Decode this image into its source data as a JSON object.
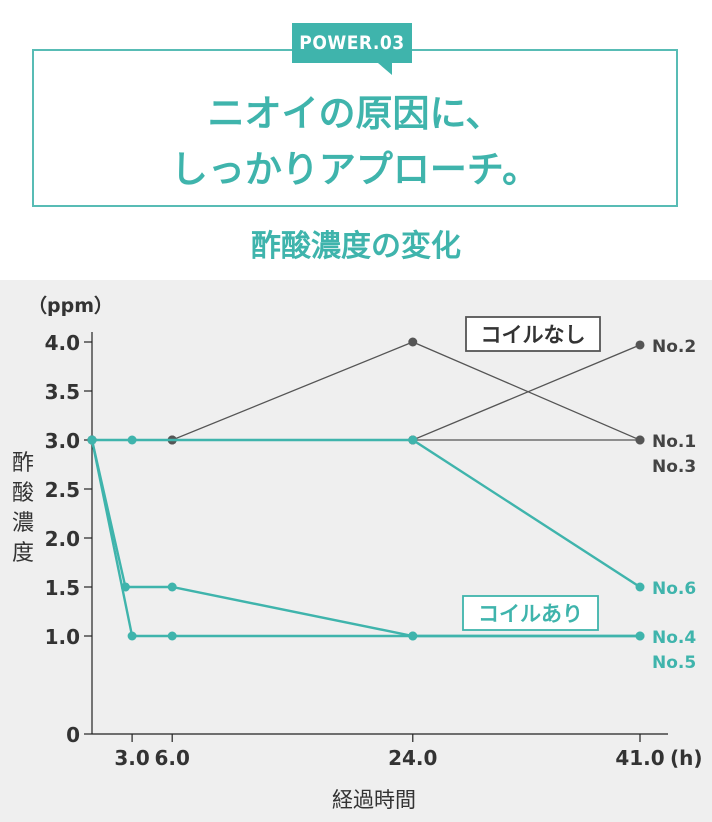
{
  "header": {
    "tag": "POWER.03",
    "headline_line1": "ニオイの原因に、",
    "headline_line2": "しっかりアプローチ。",
    "subtitle": "酢酸濃度の変化"
  },
  "colors": {
    "accent": "#3fb4ac",
    "no_coil": "#555555",
    "background": "#efefef"
  },
  "chart_data": {
    "type": "line",
    "title": "酢酸濃度の変化",
    "unit_label": "（ppm）",
    "ylabel": "酢酸濃度",
    "xlabel": "経過時間",
    "x_unit": "(h)",
    "ylim": [
      0,
      4.0
    ],
    "yticks": [
      "0",
      "1.0",
      "1.5",
      "2.0",
      "2.5",
      "3.0",
      "3.5",
      "4.0"
    ],
    "xticks": [
      "3.0",
      "6.0",
      "24.0",
      "41.0"
    ],
    "groups": [
      {
        "name": "コイルなし",
        "color": "#555555"
      },
      {
        "name": "コイルあり",
        "color": "#3fb4ac"
      }
    ],
    "series": [
      {
        "name": "No.1",
        "group": "コイルなし",
        "x": [
          0,
          6,
          24,
          41
        ],
        "y": [
          3.0,
          3.0,
          4.0,
          3.0
        ]
      },
      {
        "name": "No.2",
        "group": "コイルなし",
        "x": [
          0,
          6,
          24,
          41
        ],
        "y": [
          3.0,
          3.0,
          3.0,
          3.97
        ]
      },
      {
        "name": "No.3",
        "group": "コイルなし",
        "x": [
          0,
          6,
          24,
          41
        ],
        "y": [
          3.0,
          3.0,
          3.0,
          3.0
        ]
      },
      {
        "name": "No.4",
        "group": "コイルあり",
        "x": [
          0,
          3,
          6,
          24,
          41
        ],
        "y": [
          3.0,
          1.0,
          1.0,
          1.0,
          1.0
        ]
      },
      {
        "name": "No.5",
        "group": "コイルあり",
        "x": [
          0,
          2.5,
          6,
          24,
          41
        ],
        "y": [
          3.0,
          1.5,
          1.5,
          1.0,
          1.0
        ]
      },
      {
        "name": "No.6",
        "group": "コイルあり",
        "x": [
          0,
          3,
          24,
          41
        ],
        "y": [
          3.0,
          3.0,
          3.0,
          1.5
        ]
      }
    ],
    "end_labels": [
      {
        "text": "No.2",
        "group": "コイルなし",
        "y": 3.97
      },
      {
        "text": "No.1",
        "group": "コイルなし",
        "y": 3.0
      },
      {
        "text": "No.3",
        "group": "コイルなし",
        "y": 3.0,
        "second": true
      },
      {
        "text": "No.6",
        "group": "コイルあり",
        "y": 1.5
      },
      {
        "text": "No.4",
        "group": "コイルあり",
        "y": 1.0
      },
      {
        "text": "No.5",
        "group": "コイルあり",
        "y": 1.0,
        "second": true
      }
    ]
  }
}
